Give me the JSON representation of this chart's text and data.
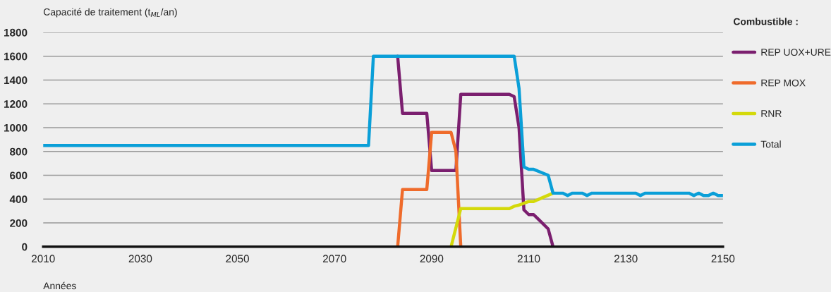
{
  "chart_data": {
    "type": "line",
    "ylabel": "Capacité de traitement (t$_{ML}$/an)",
    "xlabel": "Années",
    "legend_title": "Combustible :",
    "xlim": [
      2010,
      2150
    ],
    "xticks": [
      2010,
      2030,
      2050,
      2070,
      2090,
      2110,
      2130,
      2150
    ],
    "ylim": [
      0,
      1800
    ],
    "yticks": [
      0,
      200,
      400,
      600,
      800,
      1000,
      1200,
      1400,
      1600,
      1800
    ],
    "grid": "y",
    "legend": "top right",
    "marker": "none",
    "line_style": "solid",
    "series": [
      {
        "name": "REP UOX+URE",
        "color": "#7b1f6f",
        "x": [
          2083,
          2084,
          2089,
          2090,
          2095,
          2096,
          2106,
          2107,
          2108,
          2109,
          2110,
          2111,
          2114,
          2115
        ],
        "values": [
          1600,
          1120,
          1120,
          640,
          640,
          1280,
          1280,
          1260,
          1000,
          310,
          270,
          270,
          150,
          0
        ]
      },
      {
        "name": "REP MOX",
        "color": "#ef6b2b",
        "x": [
          2083,
          2084,
          2089,
          2090,
          2094,
          2095,
          2096
        ],
        "values": [
          0,
          480,
          480,
          960,
          960,
          800,
          0
        ]
      },
      {
        "name": "RNR",
        "color": "#d4d90a",
        "x": [
          2094,
          2096,
          2106,
          2107,
          2108,
          2110,
          2111,
          2115
        ],
        "values": [
          0,
          320,
          320,
          340,
          350,
          380,
          380,
          450
        ]
      },
      {
        "name": "Total",
        "color": "#0a9fd8",
        "x": [
          2010,
          2077,
          2078,
          2107,
          2108,
          2109,
          2110,
          2111,
          2114,
          2115,
          2117,
          2118,
          2119,
          2121,
          2122,
          2123,
          2132,
          2133,
          2134,
          2143,
          2144,
          2145,
          2146,
          2147,
          2148,
          2149,
          2150
        ],
        "values": [
          850,
          850,
          1600,
          1600,
          1330,
          670,
          650,
          650,
          600,
          450,
          450,
          430,
          450,
          450,
          430,
          450,
          450,
          430,
          450,
          450,
          430,
          450,
          430,
          430,
          450,
          430,
          430
        ]
      }
    ]
  }
}
